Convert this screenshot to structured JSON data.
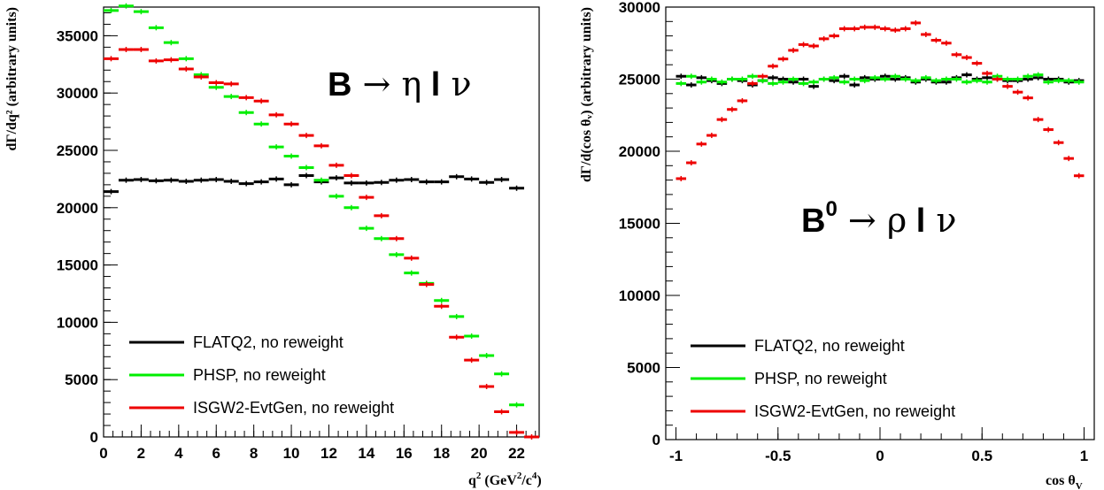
{
  "chart_data": [
    {
      "type": "line",
      "annotation": {
        "prefix": "B",
        "arrow": "→",
        "text": "η l ν"
      },
      "xlabel": {
        "main": "q",
        "parts": [
          "2",
          " (GeV",
          "2",
          "/c",
          "4",
          ")"
        ]
      },
      "ylabel": "dΓ/dq² (arbitrary units)",
      "xlim": [
        0,
        23.2
      ],
      "ylim": [
        0,
        37500
      ],
      "x_ticks": [
        0,
        2,
        4,
        6,
        8,
        10,
        12,
        14,
        16,
        18,
        20,
        22
      ],
      "y_ticks": [
        0,
        5000,
        10000,
        15000,
        20000,
        25000,
        30000,
        35000
      ],
      "bin_width": 0.8,
      "series": [
        {
          "name": "FLATQ2, no reweight",
          "color": "#000000",
          "x": [
            0.4,
            1.2,
            2.0,
            2.8,
            3.6,
            4.4,
            5.2,
            6.0,
            6.8,
            7.6,
            8.4,
            9.2,
            10.0,
            10.8,
            11.6,
            12.4,
            13.2,
            14.0,
            14.8,
            15.6,
            16.4,
            17.2,
            18.0,
            18.8,
            19.6,
            20.4,
            21.2,
            22.0
          ],
          "values": [
            21400,
            22400,
            22450,
            22350,
            22400,
            22300,
            22400,
            22450,
            22300,
            22100,
            22250,
            22500,
            22000,
            22800,
            22250,
            22600,
            22150,
            22150,
            22200,
            22400,
            22450,
            22250,
            22250,
            22700,
            22500,
            22200,
            22450,
            21700
          ]
        },
        {
          "name": "PHSP, no reweight",
          "color": "#00ee00",
          "x": [
            0.4,
            1.2,
            2.0,
            2.8,
            3.6,
            4.4,
            5.2,
            6.0,
            6.8,
            7.6,
            8.4,
            9.2,
            10.0,
            10.8,
            11.6,
            12.4,
            13.2,
            14.0,
            14.8,
            15.6,
            16.4,
            17.2,
            18.0,
            18.8,
            19.6,
            20.4,
            21.2,
            22.0
          ],
          "values": [
            37200,
            37600,
            37100,
            35700,
            34400,
            33000,
            31600,
            30500,
            29700,
            28300,
            27300,
            25300,
            24500,
            23500,
            22400,
            21000,
            20000,
            18200,
            17300,
            15900,
            14300,
            13400,
            11900,
            10500,
            8800,
            7100,
            5500,
            2800
          ]
        },
        {
          "name": "ISGW2-EvtGen, no reweight",
          "color": "#ee0000",
          "x": [
            0.4,
            1.2,
            2.0,
            2.8,
            3.6,
            4.4,
            5.2,
            6.0,
            6.8,
            7.6,
            8.4,
            9.2,
            10.0,
            10.8,
            11.6,
            12.4,
            13.2,
            14.0,
            14.8,
            15.6,
            16.4,
            17.2,
            18.0,
            18.8,
            19.6,
            20.4,
            21.2,
            22.0,
            22.8
          ],
          "values": [
            33000,
            33800,
            33800,
            32800,
            32900,
            32100,
            31400,
            30900,
            30800,
            29600,
            29300,
            28100,
            27300,
            26300,
            25400,
            23700,
            22800,
            20900,
            19300,
            17300,
            15600,
            13300,
            11400,
            8700,
            6700,
            4400,
            2200,
            400,
            0
          ]
        }
      ],
      "legend_position": "bottom-left"
    },
    {
      "type": "line",
      "annotation": {
        "prefix": "B",
        "superscript": "0",
        "arrow": "→",
        "text": "ρ l ν"
      },
      "xlabel": {
        "main": "cos θ",
        "sub": "V"
      },
      "ylabel": "dΓ/d(cos θᵥ) (arbitrary units)",
      "xlim": [
        -1.05,
        1.05
      ],
      "ylim": [
        0,
        30000
      ],
      "x_ticks": [
        -1,
        -0.5,
        0,
        0.5,
        1
      ],
      "x_tick_labels": [
        "-1",
        "-0.5",
        "0",
        "0.5",
        "1"
      ],
      "y_ticks": [
        0,
        5000,
        10000,
        15000,
        20000,
        25000,
        30000
      ],
      "bin_width": 0.05,
      "series": [
        {
          "name": "FLATQ2, no reweight",
          "color": "#000000",
          "x": [
            -0.975,
            -0.925,
            -0.875,
            -0.825,
            -0.775,
            -0.725,
            -0.675,
            -0.625,
            -0.575,
            -0.525,
            -0.475,
            -0.425,
            -0.375,
            -0.325,
            -0.275,
            -0.225,
            -0.175,
            -0.125,
            -0.075,
            -0.025,
            0.025,
            0.075,
            0.125,
            0.175,
            0.225,
            0.275,
            0.325,
            0.375,
            0.425,
            0.475,
            0.525,
            0.575,
            0.625,
            0.675,
            0.725,
            0.775,
            0.825,
            0.875,
            0.925,
            0.975
          ],
          "values": [
            25200,
            24600,
            25100,
            24900,
            24700,
            25000,
            24900,
            24600,
            24900,
            25100,
            25000,
            24800,
            25000,
            24500,
            25000,
            24900,
            25200,
            24600,
            25100,
            25000,
            25200,
            25000,
            25100,
            24800,
            25000,
            24800,
            24800,
            25100,
            25300,
            25000,
            25100,
            25000,
            24900,
            24900,
            25000,
            25100,
            25000,
            25000,
            24800,
            24900
          ]
        },
        {
          "name": "PHSP, no reweight",
          "color": "#00ee00",
          "x": [
            -0.975,
            -0.925,
            -0.875,
            -0.825,
            -0.775,
            -0.725,
            -0.675,
            -0.625,
            -0.575,
            -0.525,
            -0.475,
            -0.425,
            -0.375,
            -0.325,
            -0.275,
            -0.225,
            -0.175,
            -0.125,
            -0.075,
            -0.025,
            0.025,
            0.075,
            0.125,
            0.175,
            0.225,
            0.275,
            0.325,
            0.375,
            0.425,
            0.475,
            0.525,
            0.575,
            0.625,
            0.675,
            0.725,
            0.775,
            0.825,
            0.875,
            0.925,
            0.975
          ],
          "values": [
            24700,
            25200,
            24800,
            25000,
            24800,
            25000,
            25000,
            25200,
            24900,
            24700,
            24800,
            25000,
            24700,
            24800,
            25000,
            25100,
            24800,
            25000,
            24900,
            25100,
            25000,
            25200,
            25000,
            24900,
            25100,
            24900,
            25000,
            25000,
            24800,
            24900,
            24800,
            25200,
            25000,
            25000,
            25200,
            25300,
            24800,
            24900,
            24900,
            24800
          ]
        },
        {
          "name": "ISGW2-EvtGen, no reweight",
          "color": "#ee0000",
          "x": [
            -0.975,
            -0.925,
            -0.875,
            -0.825,
            -0.775,
            -0.725,
            -0.675,
            -0.625,
            -0.575,
            -0.525,
            -0.475,
            -0.425,
            -0.375,
            -0.325,
            -0.275,
            -0.225,
            -0.175,
            -0.125,
            -0.075,
            -0.025,
            0.025,
            0.075,
            0.125,
            0.175,
            0.225,
            0.275,
            0.325,
            0.375,
            0.425,
            0.475,
            0.525,
            0.575,
            0.625,
            0.675,
            0.725,
            0.775,
            0.825,
            0.875,
            0.925,
            0.975
          ],
          "values": [
            18100,
            19200,
            20500,
            21100,
            22200,
            22900,
            23500,
            24700,
            25200,
            25900,
            26400,
            27000,
            27400,
            27300,
            27800,
            28000,
            28500,
            28500,
            28600,
            28600,
            28500,
            28400,
            28500,
            28900,
            28100,
            27700,
            27500,
            26700,
            26500,
            26100,
            25400,
            25000,
            24500,
            24100,
            23700,
            22200,
            21500,
            20600,
            19500,
            18300
          ]
        }
      ],
      "legend_position": "bottom-left"
    }
  ]
}
